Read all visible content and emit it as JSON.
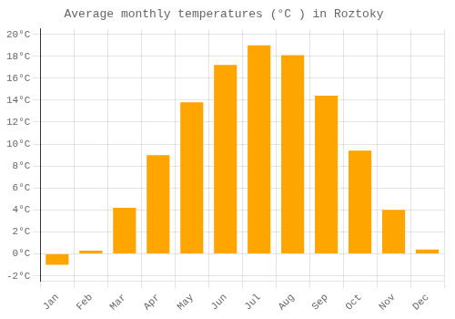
{
  "chart_data": {
    "type": "bar",
    "title": "Average monthly temperatures (°C ) in Roztoky",
    "categories": [
      "Jan",
      "Feb",
      "Mar",
      "Apr",
      "May",
      "Jun",
      "Jul",
      "Aug",
      "Sep",
      "Oct",
      "Nov",
      "Dec"
    ],
    "values": [
      -1.0,
      0.3,
      4.2,
      9.0,
      13.8,
      17.2,
      19.0,
      18.1,
      14.4,
      9.4,
      4.0,
      0.4
    ],
    "color": "#FFA500",
    "ylim": [
      -2.5,
      20.5
    ],
    "yticks": [
      {
        "value": -2,
        "label": "-2°C"
      },
      {
        "value": 0,
        "label": "0°C"
      },
      {
        "value": 2,
        "label": "2°C"
      },
      {
        "value": 4,
        "label": "4°C"
      },
      {
        "value": 6,
        "label": "6°C"
      },
      {
        "value": 8,
        "label": "8°C"
      },
      {
        "value": 10,
        "label": "10°C"
      },
      {
        "value": 12,
        "label": "12°C"
      },
      {
        "value": 14,
        "label": "14°C"
      },
      {
        "value": 16,
        "label": "16°C"
      },
      {
        "value": 18,
        "label": "18°C"
      },
      {
        "value": 20,
        "label": "20°C"
      }
    ],
    "grid": true
  }
}
